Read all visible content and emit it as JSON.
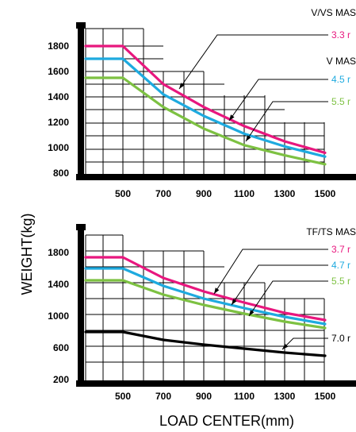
{
  "colors": {
    "magenta": "#e8177e",
    "cyan": "#1eaadf",
    "green": "#7dc142",
    "black": "#000000"
  },
  "xlabel": "LOAD CENTER(mm)",
  "ylabel": "WEIGHT(kg)",
  "chart_data": [
    {
      "type": "line",
      "x_ticks": [
        "500",
        "700",
        "900",
        "1100",
        "1300",
        "1500"
      ],
      "y_ticks": [
        "1800",
        "1600",
        "1400",
        "1200",
        "1000",
        "800"
      ],
      "xlim": [
        300,
        1600
      ],
      "ylim": [
        700,
        2000
      ],
      "header": "V/VS MAS",
      "subheader": "V  MAS",
      "series": [
        {
          "name": "3.3 r",
          "color": "magenta",
          "x": [
            300,
            500,
            700,
            900,
            1100,
            1300,
            1500
          ],
          "y": [
            1800,
            1800,
            1500,
            1320,
            1170,
            1050,
            960
          ]
        },
        {
          "name": "4.5 r",
          "color": "cyan",
          "x": [
            300,
            500,
            700,
            900,
            1100,
            1300,
            1500
          ],
          "y": [
            1700,
            1700,
            1420,
            1250,
            1110,
            1010,
            930
          ]
        },
        {
          "name": "5.5 r",
          "color": "green",
          "x": [
            300,
            500,
            700,
            900,
            1100,
            1300,
            1500
          ],
          "y": [
            1550,
            1550,
            1320,
            1150,
            1020,
            940,
            870
          ]
        }
      ]
    },
    {
      "type": "line",
      "x_ticks": [
        "500",
        "700",
        "900",
        "1100",
        "1300",
        "1500"
      ],
      "y_ticks": [
        "1800",
        "1400",
        "1000",
        "600",
        "200"
      ],
      "xlim": [
        300,
        1600
      ],
      "ylim": [
        100,
        2100
      ],
      "header": "TF/TS MAS",
      "series": [
        {
          "name": "3.7 r",
          "color": "magenta",
          "x": [
            300,
            500,
            700,
            900,
            1100,
            1300,
            1500
          ],
          "y": [
            1740,
            1740,
            1480,
            1310,
            1170,
            1040,
            950
          ]
        },
        {
          "name": "4.7 r",
          "color": "cyan",
          "x": [
            300,
            500,
            700,
            900,
            1100,
            1300,
            1500
          ],
          "y": [
            1600,
            1600,
            1380,
            1220,
            1100,
            990,
            900
          ]
        },
        {
          "name": "5.5 r",
          "color": "green",
          "x": [
            300,
            500,
            700,
            900,
            1100,
            1300,
            1500
          ],
          "y": [
            1450,
            1450,
            1270,
            1140,
            1030,
            930,
            850
          ]
        },
        {
          "name": "7.0 r",
          "color": "black",
          "x": [
            300,
            500,
            700,
            900,
            1100,
            1300,
            1500
          ],
          "y": [
            800,
            800,
            700,
            640,
            590,
            540,
            500
          ]
        }
      ]
    }
  ]
}
